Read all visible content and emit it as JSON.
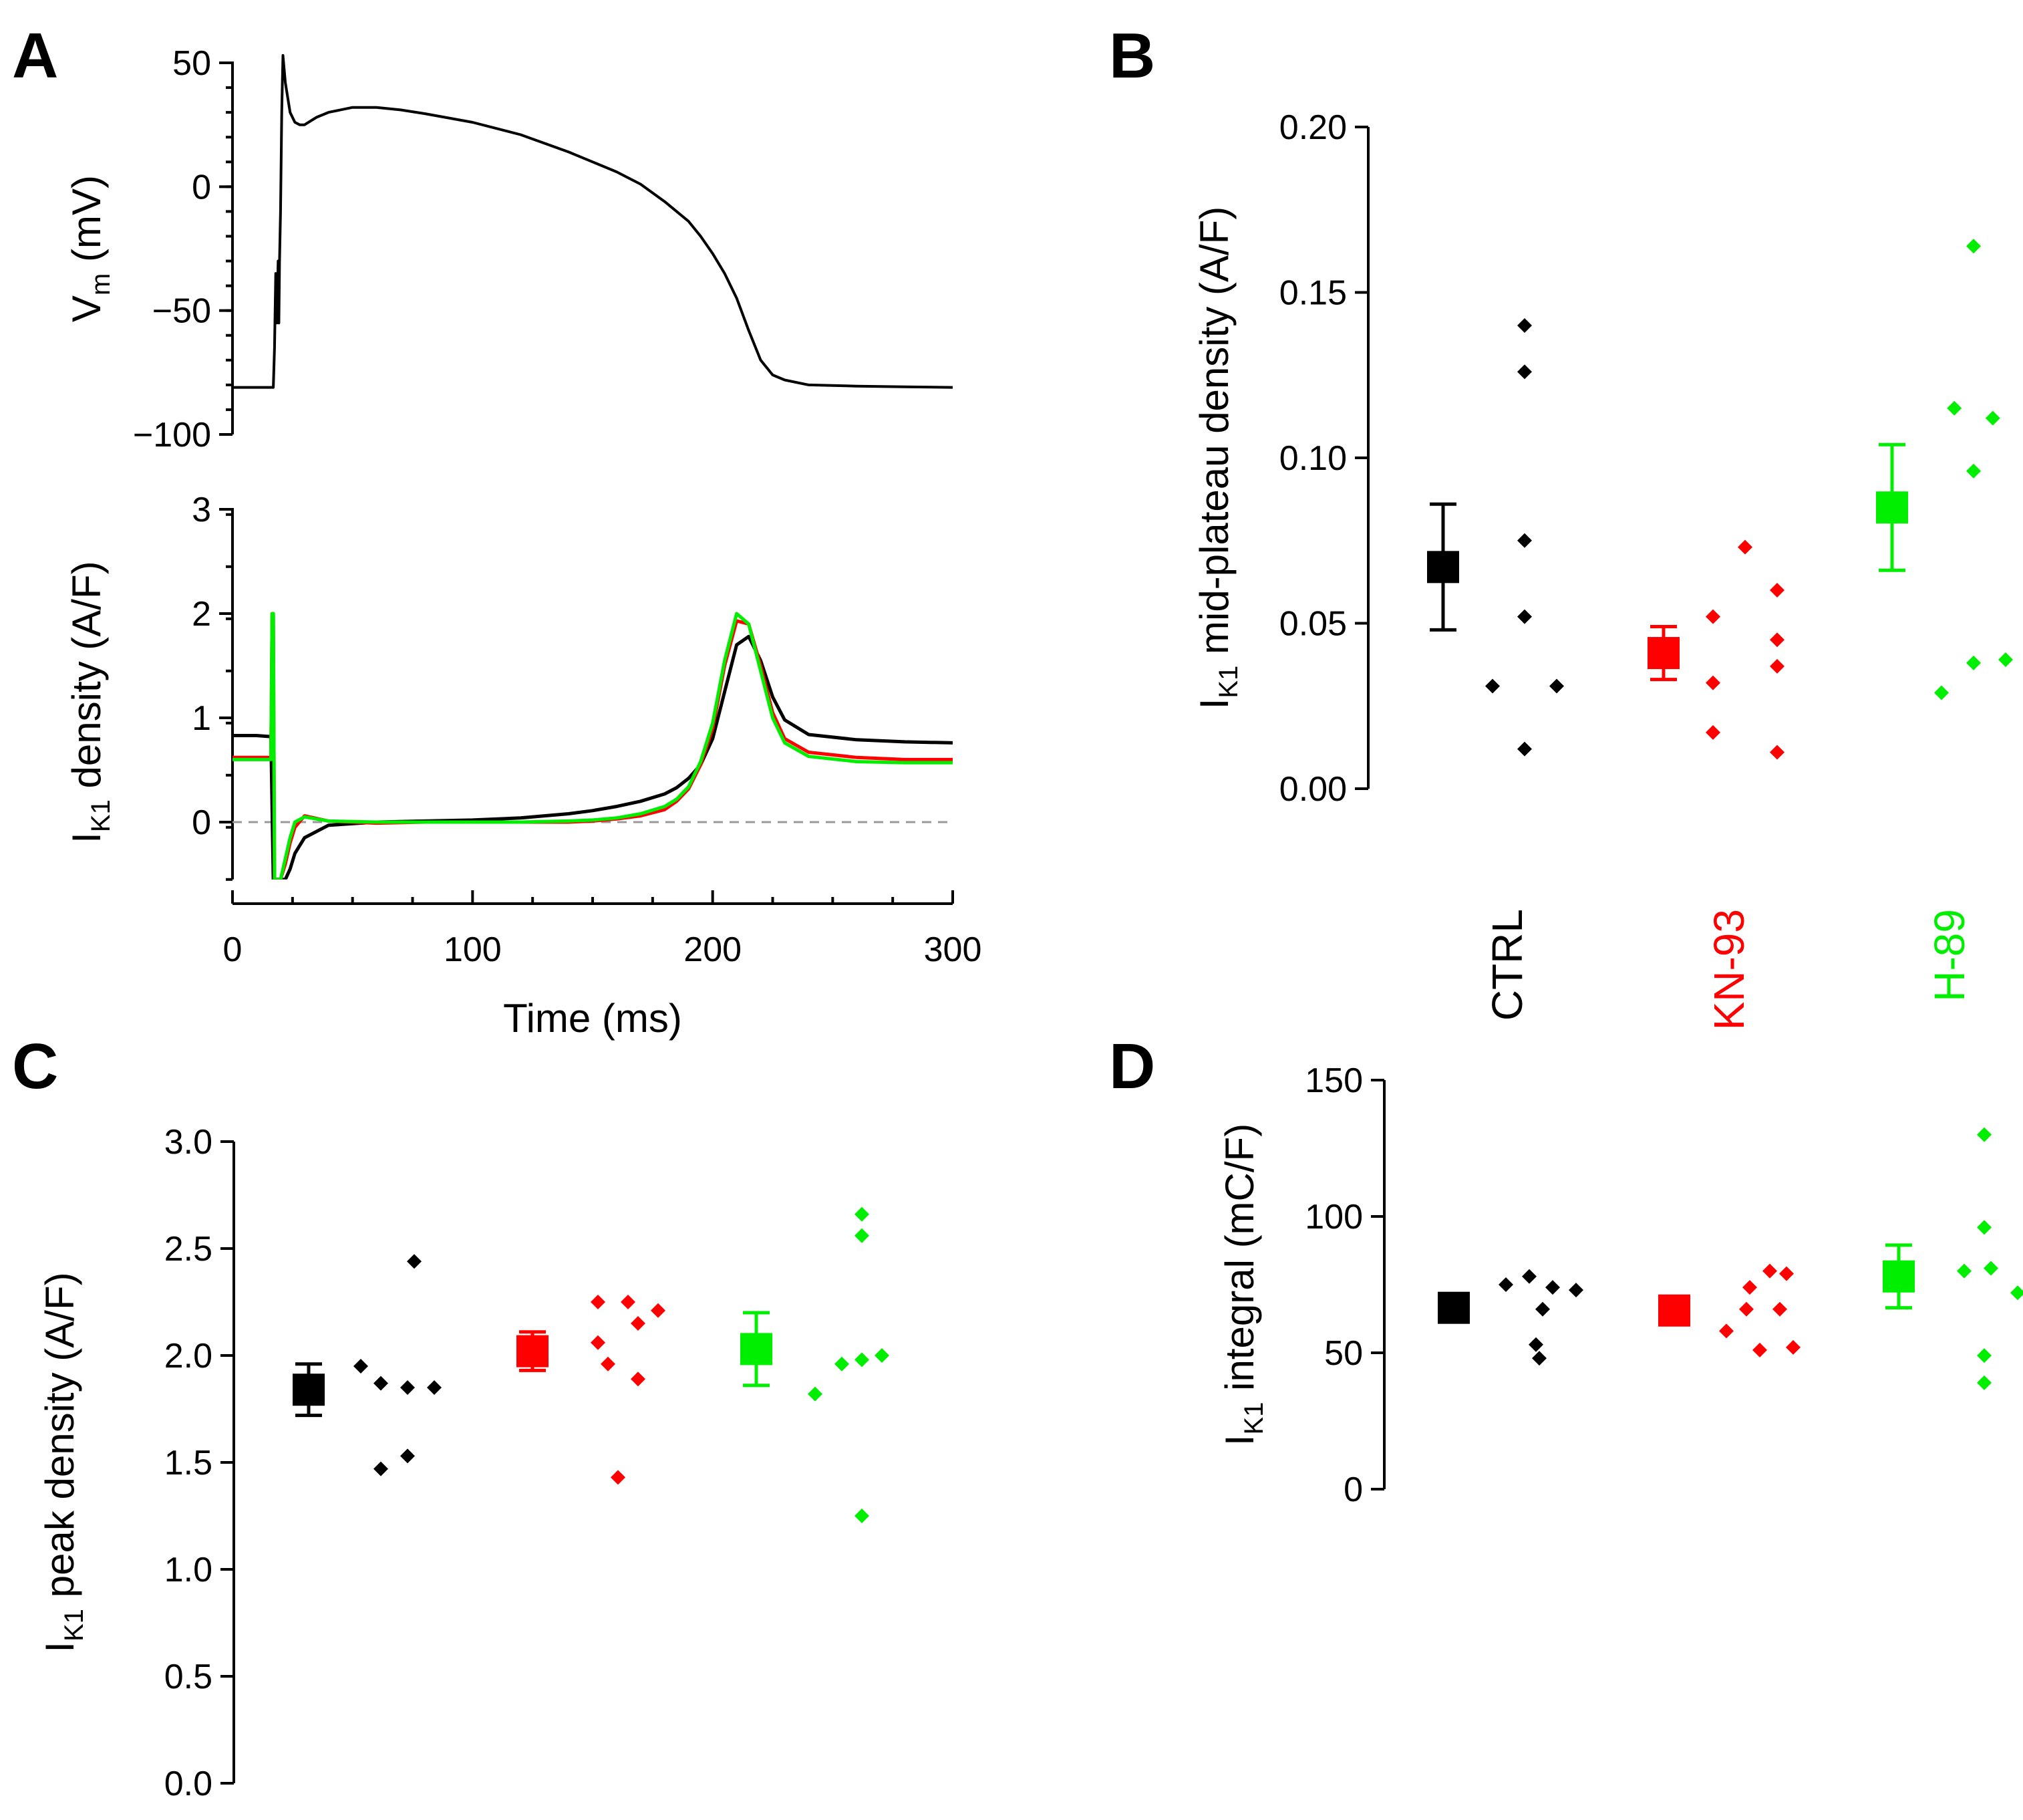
{
  "colors": {
    "CTRL": "#000000",
    "KN-93": "#ff0000",
    "H-89": "#00ee00",
    "zero_line": "#999999"
  },
  "group_labels": [
    "CTRL",
    "KN-93",
    "H-89"
  ],
  "chart_data": [
    {
      "panel": "A",
      "type": "line",
      "subplot": "top",
      "ylabel": "V",
      "ylabel_sub": "m",
      "ylabel_suffix": " (mV)",
      "xlim": [
        0,
        300
      ],
      "ylim": [
        -100,
        50
      ],
      "yticks": [
        50,
        0,
        -50,
        -100
      ],
      "yticklabels": [
        "50",
        "0",
        "−50",
        "−100"
      ],
      "series": [
        {
          "name": "Vm",
          "color": "#000000",
          "x": [
            0,
            17,
            17.5,
            18,
            18.5,
            19,
            19.3,
            19.6,
            20,
            20.5,
            21,
            22,
            24,
            26,
            28,
            30,
            35,
            40,
            50,
            60,
            70,
            80,
            100,
            120,
            140,
            160,
            170,
            180,
            190,
            195,
            200,
            205,
            210,
            215,
            220,
            225,
            230,
            240,
            260,
            280,
            300
          ],
          "y": [
            -81,
            -81,
            -65,
            -35,
            -55,
            -30,
            -55,
            -30,
            -10,
            30,
            53,
            42,
            30,
            26,
            25,
            25,
            28,
            30,
            32,
            32,
            31,
            29.5,
            26,
            21,
            14,
            6,
            1,
            -6,
            -14,
            -20,
            -27,
            -35,
            -45,
            -58,
            -70,
            -76,
            -78,
            -80,
            -80.5,
            -80.8,
            -81
          ]
        }
      ]
    },
    {
      "panel": "A",
      "type": "line",
      "subplot": "bottom",
      "xlabel": "Time (ms)",
      "ylabel": "I",
      "ylabel_sub": "K1",
      "ylabel_suffix": " density (A/F)",
      "xlim": [
        0,
        300
      ],
      "ylim": [
        -0.55,
        3
      ],
      "yticks": [
        3,
        2,
        1,
        0
      ],
      "xticks": [
        0,
        100,
        200,
        300
      ],
      "series": [
        {
          "name": "CTRL",
          "color": "#000000",
          "x": [
            0,
            10,
            16,
            17,
            18,
            19,
            20,
            22,
            24,
            26,
            30,
            40,
            60,
            80,
            100,
            120,
            140,
            150,
            160,
            170,
            180,
            185,
            190,
            195,
            200,
            205,
            210,
            215,
            220,
            225,
            230,
            240,
            260,
            280,
            300
          ],
          "y": [
            0.83,
            0.83,
            0.82,
            -0.55,
            -0.55,
            -0.55,
            -0.55,
            -0.55,
            -0.45,
            -0.3,
            -0.15,
            -0.03,
            0.0,
            0.01,
            0.02,
            0.04,
            0.08,
            0.11,
            0.15,
            0.2,
            0.27,
            0.33,
            0.42,
            0.55,
            0.8,
            1.25,
            1.7,
            1.78,
            1.55,
            1.2,
            0.98,
            0.84,
            0.79,
            0.77,
            0.76
          ]
        },
        {
          "name": "KN-93",
          "color": "#ff0000",
          "x": [
            0,
            10,
            16,
            16.5,
            17,
            17.5,
            18,
            19,
            20,
            22,
            24,
            26,
            30,
            40,
            60,
            80,
            100,
            120,
            140,
            150,
            160,
            170,
            180,
            185,
            190,
            195,
            200,
            205,
            210,
            215,
            220,
            225,
            230,
            240,
            260,
            280,
            300
          ],
          "y": [
            0.62,
            0.62,
            0.62,
            2.0,
            2.0,
            -0.55,
            -0.55,
            -0.55,
            -0.55,
            -0.4,
            -0.2,
            -0.05,
            0.06,
            0.01,
            -0.01,
            0.0,
            0.0,
            0.0,
            0.0,
            0.01,
            0.03,
            0.06,
            0.12,
            0.2,
            0.32,
            0.55,
            0.9,
            1.5,
            1.93,
            1.9,
            1.5,
            1.05,
            0.8,
            0.67,
            0.62,
            0.6,
            0.6
          ]
        },
        {
          "name": "H-89",
          "color": "#00ee00",
          "x": [
            0,
            10,
            16,
            16.5,
            17,
            17.5,
            18,
            19,
            20,
            22,
            24,
            26,
            30,
            40,
            60,
            80,
            100,
            120,
            140,
            150,
            160,
            170,
            180,
            185,
            190,
            195,
            200,
            205,
            210,
            215,
            220,
            225,
            230,
            240,
            260,
            280,
            300
          ],
          "y": [
            0.6,
            0.6,
            0.6,
            2.0,
            2.0,
            -0.55,
            -0.55,
            -0.55,
            -0.55,
            -0.35,
            -0.15,
            0.0,
            0.05,
            0.01,
            0.0,
            0.0,
            0.0,
            0.0,
            0.01,
            0.02,
            0.04,
            0.08,
            0.15,
            0.22,
            0.34,
            0.58,
            0.95,
            1.55,
            2.0,
            1.9,
            1.45,
            1.0,
            0.76,
            0.63,
            0.58,
            0.57,
            0.57
          ]
        }
      ]
    },
    {
      "panel": "B",
      "type": "scatter",
      "ylabel": "I",
      "ylabel_sub": "K1",
      "ylabel_suffix": " mid-plateau density (A/F)",
      "ylim": [
        0,
        0.2
      ],
      "yticks": [
        0.2,
        0.15,
        0.1,
        0.05,
        0.0
      ],
      "yticklabels": [
        "0.20",
        "0.15",
        "0.10",
        "0.05",
        "0.00"
      ],
      "categories": [
        "CTRL",
        "KN-93",
        "H-89"
      ],
      "series": [
        {
          "name": "CTRL",
          "color": "#000000",
          "mean": 0.067,
          "err": 0.019,
          "points": [
            [
              0,
              0.14
            ],
            [
              0,
              0.126
            ],
            [
              0,
              0.075
            ],
            [
              0,
              0.052
            ],
            [
              -1,
              0.031
            ],
            [
              1,
              0.031
            ],
            [
              0,
              0.012
            ]
          ]
        },
        {
          "name": "KN-93",
          "color": "#ff0000",
          "mean": 0.041,
          "err": 0.008,
          "points": [
            [
              0,
              0.073
            ],
            [
              1,
              0.06
            ],
            [
              -1,
              0.052
            ],
            [
              1,
              0.045
            ],
            [
              -1,
              0.032
            ],
            [
              1,
              0.037
            ],
            [
              -1,
              0.017
            ],
            [
              1,
              0.011
            ]
          ]
        },
        {
          "name": "H-89",
          "color": "#00ee00",
          "mean": 0.085,
          "err": 0.019,
          "points": [
            [
              0,
              0.164
            ],
            [
              -0.6,
              0.115
            ],
            [
              0.6,
              0.112
            ],
            [
              0,
              0.096
            ],
            [
              -1,
              0.029
            ],
            [
              0,
              0.038
            ],
            [
              1,
              0.039
            ]
          ]
        }
      ]
    },
    {
      "panel": "C",
      "type": "scatter",
      "ylabel": "I",
      "ylabel_sub": "K1",
      "ylabel_suffix": " peak density (A/F)",
      "ylim": [
        0,
        3
      ],
      "yticks": [
        3.0,
        2.5,
        2.0,
        1.5,
        1.0,
        0.5,
        0.0
      ],
      "yticklabels": [
        "3.0",
        "2.5",
        "2.0",
        "1.5",
        "1.0",
        "0.5",
        "0.0"
      ],
      "categories": [
        "CTRL",
        "KN-93",
        "H-89"
      ],
      "series": [
        {
          "name": "CTRL",
          "color": "#000000",
          "mean": 1.84,
          "err": 0.12,
          "points": [
            [
              0.6,
              2.44
            ],
            [
              -1,
              1.95
            ],
            [
              -0.4,
              1.87
            ],
            [
              0.4,
              1.85
            ],
            [
              1.2,
              1.85
            ],
            [
              -0.4,
              1.47
            ],
            [
              0.4,
              1.53
            ]
          ]
        },
        {
          "name": "KN-93",
          "color": "#ff0000",
          "mean": 2.02,
          "err": 0.09,
          "points": [
            [
              -0.6,
              2.25
            ],
            [
              0.3,
              2.25
            ],
            [
              1.2,
              2.21
            ],
            [
              0.6,
              2.15
            ],
            [
              -0.6,
              2.06
            ],
            [
              -0.3,
              1.96
            ],
            [
              0.6,
              1.89
            ],
            [
              0.0,
              1.43
            ]
          ]
        },
        {
          "name": "H-89",
          "color": "#00ee00",
          "mean": 2.03,
          "err": 0.17,
          "points": [
            [
              0.6,
              2.66
            ],
            [
              0.6,
              2.56
            ],
            [
              -0.8,
              1.82
            ],
            [
              0,
              1.96
            ],
            [
              0.6,
              1.98
            ],
            [
              1.2,
              2.0
            ],
            [
              0.6,
              1.25
            ]
          ]
        }
      ]
    },
    {
      "panel": "D",
      "type": "scatter",
      "ylabel": "I",
      "ylabel_sub": "K1",
      "ylabel_suffix": " integral (mC/F)",
      "ylim": [
        0,
        150
      ],
      "yticks": [
        150,
        100,
        50,
        0
      ],
      "categories": [
        "CTRL",
        "KN-93",
        "H-89"
      ],
      "series": [
        {
          "name": "CTRL",
          "color": "#000000",
          "mean": 66.5,
          "err": 4,
          "points": [
            [
              -1,
              75
            ],
            [
              -0.3,
              78
            ],
            [
              0.4,
              74
            ],
            [
              1.1,
              73
            ],
            [
              0.1,
              66
            ],
            [
              -0.1,
              53
            ],
            [
              0,
              48
            ]
          ]
        },
        {
          "name": "KN-93",
          "color": "#ff0000",
          "mean": 65.5,
          "err": 3,
          "points": [
            [
              0.3,
              80
            ],
            [
              0.8,
              79
            ],
            [
              -0.3,
              74
            ],
            [
              -0.4,
              66
            ],
            [
              0.6,
              66
            ],
            [
              -1,
              58
            ],
            [
              0,
              51
            ],
            [
              1,
              52
            ]
          ]
        },
        {
          "name": "H-89",
          "color": "#00ee00",
          "mean": 78,
          "err": 11.5,
          "points": [
            [
              0,
              130
            ],
            [
              0,
              96
            ],
            [
              -0.6,
              80
            ],
            [
              0.2,
              81
            ],
            [
              1,
              72
            ],
            [
              0,
              49
            ],
            [
              0,
              39
            ]
          ]
        }
      ]
    }
  ]
}
